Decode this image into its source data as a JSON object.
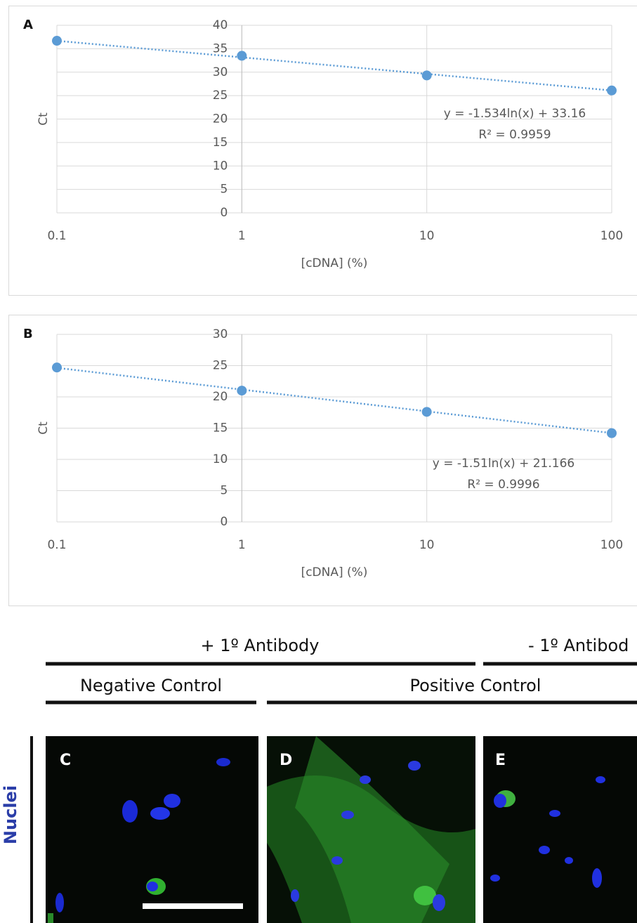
{
  "chart_data": [
    {
      "type": "scatter",
      "panel_label": "A",
      "x_label": "[cDNA] (%)",
      "y_label": "Ct",
      "x": [
        0.1,
        1,
        10,
        100
      ],
      "values": [
        36.7,
        33.5,
        29.3,
        26.1
      ],
      "color": "#5b9bd5",
      "log_x": true,
      "xlim": [
        0.1,
        100
      ],
      "xticks": [
        0.1,
        1,
        10,
        100
      ],
      "ylim": [
        0,
        40
      ],
      "yticks": [
        0,
        5,
        10,
        15,
        20,
        25,
        30,
        35,
        40
      ],
      "grid": true,
      "trendline": {
        "kind": "log",
        "slope": -1.534,
        "intercept": 33.16,
        "equation": "y = -1.534ln(x) + 33.16",
        "r2": "R² = 0.9959"
      }
    },
    {
      "type": "scatter",
      "panel_label": "B",
      "x_label": "[cDNA] (%)",
      "y_label": "Ct",
      "x": [
        0.1,
        1,
        10,
        100
      ],
      "values": [
        24.7,
        21,
        17.6,
        14.2
      ],
      "color": "#5b9bd5",
      "log_x": true,
      "xlim": [
        0.1,
        100
      ],
      "xticks": [
        0.1,
        1,
        10,
        100
      ],
      "ylim": [
        0,
        30
      ],
      "yticks": [
        0,
        5,
        10,
        15,
        20,
        25,
        30
      ],
      "grid": true,
      "trendline": {
        "kind": "log",
        "slope": -1.51,
        "intercept": 21.166,
        "equation": "y = -1.51ln(x) + 21.166",
        "r2": "R² = 0.9996"
      }
    }
  ],
  "figure": {
    "headers": [
      "+ 1º Antibody",
      "- 1º Antibod"
    ],
    "subheaders": [
      "Negative Control",
      "Positive Control"
    ],
    "row_label": "Nuclei",
    "panels": [
      "C",
      "D",
      "E"
    ]
  }
}
